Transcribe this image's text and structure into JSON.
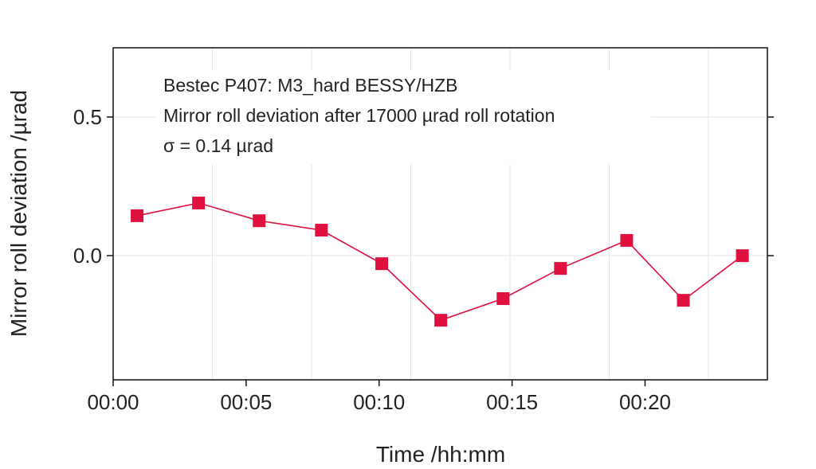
{
  "chart_data": {
    "type": "line",
    "title": "",
    "xlabel": "Time /hh:mm",
    "ylabel": "Mirror roll deviation /µrad",
    "x_unit": "minutes",
    "xlim": [
      0,
      24.6
    ],
    "ylim": [
      -0.448,
      0.75
    ],
    "x_ticks": [
      0,
      5,
      10,
      15,
      20
    ],
    "x_tick_labels": [
      "00:00",
      "00:05",
      "00:10",
      "00:15",
      "00:20"
    ],
    "y_ticks": [
      0.5,
      0.0
    ],
    "y_tick_labels": [
      "0.5",
      "0.0"
    ],
    "grid": true,
    "annotations": [
      "Bestec P407: M3_hard BESSY/HZB",
      "Mirror roll deviation after 17000 µrad roll rotation",
      "σ = 0.14 µrad"
    ],
    "series": [
      {
        "name": "Mirror roll deviation",
        "color": "#e0103f",
        "marker": "square",
        "x": [
          0.9,
          3.21,
          5.49,
          7.83,
          10.1,
          12.32,
          14.66,
          16.82,
          19.31,
          21.44,
          23.66
        ],
        "y": [
          0.144,
          0.19,
          0.126,
          0.092,
          -0.029,
          -0.233,
          -0.155,
          -0.046,
          0.055,
          -0.161,
          0.0
        ]
      }
    ]
  }
}
